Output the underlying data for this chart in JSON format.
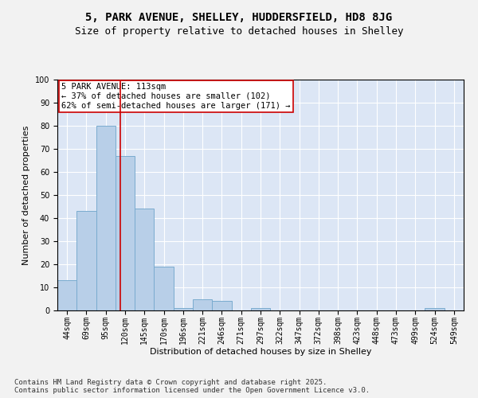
{
  "title1": "5, PARK AVENUE, SHELLEY, HUDDERSFIELD, HD8 8JG",
  "title2": "Size of property relative to detached houses in Shelley",
  "xlabel": "Distribution of detached houses by size in Shelley",
  "ylabel": "Number of detached properties",
  "categories": [
    "44sqm",
    "69sqm",
    "95sqm",
    "120sqm",
    "145sqm",
    "170sqm",
    "196sqm",
    "221sqm",
    "246sqm",
    "271sqm",
    "297sqm",
    "322sqm",
    "347sqm",
    "372sqm",
    "398sqm",
    "423sqm",
    "448sqm",
    "473sqm",
    "499sqm",
    "524sqm",
    "549sqm"
  ],
  "values": [
    13,
    43,
    80,
    67,
    44,
    19,
    1,
    5,
    4,
    0,
    1,
    0,
    0,
    0,
    0,
    0,
    0,
    0,
    0,
    1,
    0
  ],
  "bar_color": "#b8cfe8",
  "bar_edge_color": "#7aabcf",
  "background_color": "#dce6f5",
  "grid_color": "#ffffff",
  "fig_background": "#f2f2f2",
  "vline_x": 2.75,
  "vline_color": "#cc0000",
  "annotation_text": "5 PARK AVENUE: 113sqm\n← 37% of detached houses are smaller (102)\n62% of semi-detached houses are larger (171) →",
  "annotation_box_color": "#ffffff",
  "annotation_box_edge": "#cc0000",
  "ylim": [
    0,
    100
  ],
  "yticks": [
    0,
    10,
    20,
    30,
    40,
    50,
    60,
    70,
    80,
    90,
    100
  ],
  "footnote": "Contains HM Land Registry data © Crown copyright and database right 2025.\nContains public sector information licensed under the Open Government Licence v3.0.",
  "title_fontsize": 10,
  "subtitle_fontsize": 9,
  "axis_label_fontsize": 8,
  "tick_fontsize": 7,
  "annotation_fontsize": 7.5,
  "footnote_fontsize": 6.5
}
